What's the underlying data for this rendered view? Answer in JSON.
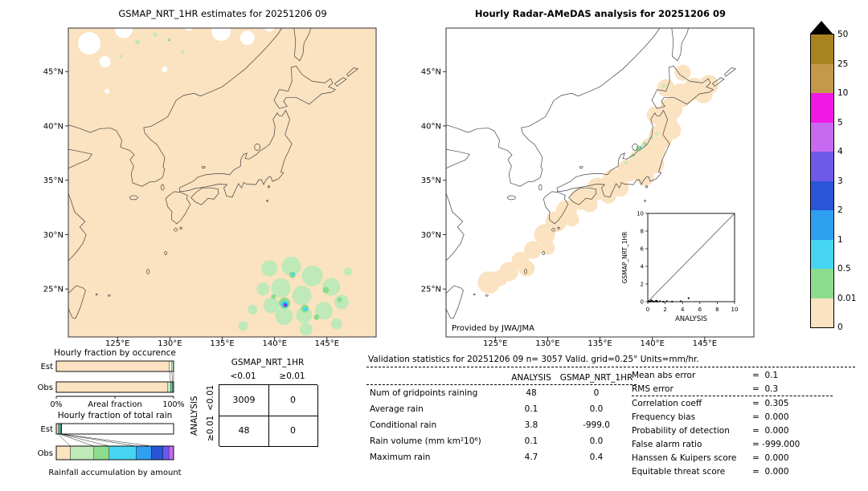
{
  "left_map": {
    "title": "GSMAP_NRT_1HR estimates for 20251206 09",
    "lat_ticks": [
      "45°N",
      "40°N",
      "35°N",
      "30°N",
      "25°N"
    ],
    "lon_ticks": [
      "125°E",
      "130°E",
      "135°E",
      "140°E",
      "145°E"
    ]
  },
  "right_map": {
    "title": "Hourly Radar-AMeDAS analysis for 20251206 09",
    "lat_ticks": [
      "45°N",
      "40°N",
      "35°N",
      "30°N",
      "25°N"
    ],
    "lon_ticks": [
      "125°E",
      "130°E",
      "135°E",
      "140°E",
      "145°E"
    ],
    "credit": "Provided by JWA/JMA",
    "inset": {
      "xlabel": "ANALYSIS",
      "ylabel": "GSMAP_NRT_1HR",
      "tick_labels": [
        "0",
        "2",
        "4",
        "6",
        "8",
        "10"
      ]
    }
  },
  "colorbar": {
    "units": "mm/hr",
    "tick_labels": [
      "50",
      "25",
      "10",
      "5",
      "4",
      "3",
      "2",
      "1",
      "0.5",
      "0.01",
      "0"
    ],
    "cell_colors_top_to_bottom": [
      "#a8831f",
      "#c49a4a",
      "#f11ae4",
      "#c86af0",
      "#6f5ae8",
      "#2a55d8",
      "#2f9ff0",
      "#45d5f2",
      "#8cdc8c",
      "#fbe2c0"
    ],
    "overflow_color": "#000000"
  },
  "occurrence_chart": {
    "title": "Hourly fraction by occurence",
    "row_labels": [
      "Est",
      "Obs"
    ],
    "axis_left": "0%",
    "axis_right": "100%",
    "caption": "Areal fraction",
    "est_segments": [
      {
        "color": "#fbe2c0",
        "pct": 96.5
      },
      {
        "color": "#ffffff",
        "pct": 2.0
      },
      {
        "color": "#bfe9b8",
        "pct": 1.5
      }
    ],
    "obs_segments": [
      {
        "color": "#fbe2c0",
        "pct": 95.0
      },
      {
        "color": "#bfe9b8",
        "pct": 2.5
      },
      {
        "color": "#8cdc8c",
        "pct": 1.5
      },
      {
        "color": "#45d5f2",
        "pct": 1.0
      }
    ]
  },
  "totalrain_chart": {
    "title": "Hourly fraction of total rain",
    "row_labels": [
      "Est",
      "Obs"
    ],
    "caption": "Rainfall accumulation by amount",
    "est_segments": [
      {
        "color": "#fbe2c0",
        "pct": 1.5
      },
      {
        "color": "#bfe9b8",
        "pct": 1.2
      },
      {
        "color": "#8cdc8c",
        "pct": 0.8
      },
      {
        "color": "#45d5f2",
        "pct": 0.7
      },
      {
        "color": "#2a55d8",
        "pct": 0.5
      },
      {
        "color": "#ffffff",
        "pct": 95.3
      }
    ],
    "obs_segments": [
      {
        "color": "#fbe2c0",
        "pct": 12
      },
      {
        "color": "#bfe9b8",
        "pct": 20
      },
      {
        "color": "#8cdc8c",
        "pct": 13
      },
      {
        "color": "#45d5f2",
        "pct": 23
      },
      {
        "color": "#2f9ff0",
        "pct": 13
      },
      {
        "color": "#2a55d8",
        "pct": 10
      },
      {
        "color": "#6f5ae8",
        "pct": 5
      },
      {
        "color": "#c86af0",
        "pct": 4
      }
    ]
  },
  "contingency": {
    "top_header": "GSMAP_NRT_1HR",
    "side_header": "ANALYSIS",
    "col_labels": [
      "<0.01",
      "≥0.01"
    ],
    "row_labels": [
      "<0.01",
      "≥0.01"
    ],
    "values": [
      [
        "3009",
        "0"
      ],
      [
        "48",
        "0"
      ]
    ]
  },
  "validation": {
    "title": "Validation statistics for 20251206 09  n= 3057 Valid. grid=0.25° Units=mm/hr.",
    "col_headers": [
      "ANALYSIS",
      "GSMAP_NRT_1HR"
    ],
    "rows": [
      {
        "label": "Num of gridpoints raining",
        "analysis": "48",
        "gsmap": "0"
      },
      {
        "label": "Average rain",
        "analysis": "0.1",
        "gsmap": "0.0"
      },
      {
        "label": "Conditional rain",
        "analysis": "3.8",
        "gsmap": "-999.0"
      },
      {
        "label": "Rain volume (mm km²10⁶)",
        "analysis": "0.1",
        "gsmap": "0.0"
      },
      {
        "label": "Maximum rain",
        "analysis": "4.7",
        "gsmap": "0.4"
      }
    ],
    "scores": [
      {
        "label": "Mean abs error",
        "value": "0.1"
      },
      {
        "label": "RMS error",
        "value": "0.3"
      },
      {
        "label": "Correlation coeff",
        "value": "0.305"
      },
      {
        "label": "Frequency bias",
        "value": "0.000"
      },
      {
        "label": "Probability of detection",
        "value": "0.000"
      },
      {
        "label": "False alarm ratio",
        "value": "-999.000"
      },
      {
        "label": "Hanssen & Kuipers score",
        "value": "0.000"
      },
      {
        "label": "Equitable threat score",
        "value": "0.000"
      }
    ]
  },
  "chart_data": [
    {
      "type": "heatmap",
      "title": "GSMAP_NRT_1HR estimates for 20251206 09",
      "units": "mm/hr",
      "x_axis": {
        "label": "longitude",
        "ticks": [
          "125°E",
          "130°E",
          "135°E",
          "140°E",
          "145°E"
        ],
        "range": [
          "~120.5°E",
          "~149.5°E"
        ]
      },
      "y_axis": {
        "label": "latitude",
        "ticks": [
          "45°N",
          "40°N",
          "35°N",
          "30°N",
          "25°N"
        ],
        "range": [
          "~20.5°N",
          "~49°N"
        ]
      },
      "levels_mm_hr": [
        0,
        0.01,
        0.5,
        1,
        2,
        3,
        4,
        5,
        10,
        25,
        50
      ],
      "summary": "Whole domain ~0 mm/hr (pale orange) with white no-data patches north of ~45°N; organized rain cluster near 21-27.5°N / 137-147°E with embedded cells up to 5-10 mm/hr (magenta core near 23.5°N, 141°E); scattered light rain specks near 46-48.5°N"
    },
    {
      "type": "heatmap",
      "title": "Hourly Radar-AMeDAS analysis for 20251206 09",
      "units": "mm/hr",
      "credit": "Provided by JWA/JMA",
      "x_axis": {
        "label": "longitude",
        "ticks": [
          "125°E",
          "130°E",
          "135°E",
          "140°E",
          "145°E"
        ]
      },
      "y_axis": {
        "label": "latitude",
        "ticks": [
          "45°N",
          "40°N",
          "35°N",
          "30°N",
          "25°N"
        ]
      },
      "levels_mm_hr": [
        0,
        0.01,
        0.5,
        1,
        2,
        3,
        4,
        5,
        10,
        25,
        50
      ],
      "summary": "Radar-AMeDAS coverage band along the Japanese archipelago mostly 0 mm/hr (pale orange); light rain 0.01-2 mm/hr on the Sea-of-Japan side of northern Honshu near 37-38.5°N / 138-139.5°E",
      "inset_scatter": {
        "xlabel": "ANALYSIS",
        "ylabel": "GSMAP_NRT_1HR",
        "xlim": [
          0,
          10
        ],
        "ylim": [
          0,
          10
        ],
        "diagonal_reference": true,
        "points_approx": [
          [
            0.1,
            0
          ],
          [
            0.3,
            0
          ],
          [
            0.5,
            0.1
          ],
          [
            0.9,
            0
          ],
          [
            1.4,
            0.05
          ],
          [
            1.9,
            0
          ],
          [
            2.8,
            0
          ],
          [
            3.8,
            0.05
          ],
          [
            4.7,
            0.4
          ]
        ]
      }
    },
    {
      "type": "bar",
      "title": "Hourly fraction by occurence",
      "xlabel": "Areal fraction",
      "orientation": "horizontal",
      "stacked": true,
      "unit": "%",
      "xlim": [
        0,
        100
      ],
      "categories": [
        "Est",
        "Obs"
      ],
      "series": [
        {
          "name": "Est",
          "segments_pct": {
            "0 mm/hr": 96.5,
            "missing": 2.0,
            "0.01-0.5": 1.5
          }
        },
        {
          "name": "Obs",
          "segments_pct": {
            "0 mm/hr": 95.0,
            "0.01-0.5": 2.5,
            "0.5-1": 1.5,
            "1-2": 1.0
          }
        }
      ]
    },
    {
      "type": "bar",
      "title": "Hourly fraction of total rain",
      "xlabel": "Rainfall accumulation by amount",
      "orientation": "horizontal",
      "stacked": true,
      "unit": "%",
      "xlim": [
        0,
        100
      ],
      "categories": [
        "Est",
        "Obs"
      ],
      "series": [
        {
          "name": "Est",
          "segments_pct": {
            "0-0.01": 1.5,
            "0.01-0.5": 1.2,
            "0.5-1": 0.8,
            "1-2": 0.7,
            "2-3": 0.5,
            "none": 95.3
          }
        },
        {
          "name": "Obs",
          "segments_pct": {
            "0-0.01": 12,
            "0.01-0.5": 20,
            "0.5-1": 13,
            "1-2": 23,
            "2-3": 13,
            "3-4": 10,
            "4-5": 5,
            "5-10": 4
          }
        }
      ]
    },
    {
      "type": "table",
      "title": "Contingency table (gridpoints)",
      "col_group": "GSMAP_NRT_1HR",
      "row_group": "ANALYSIS",
      "columns": [
        "<0.01",
        "≥0.01"
      ],
      "rows": [
        "<0.01",
        "≥0.01"
      ],
      "values": [
        [
          3009,
          0
        ],
        [
          48,
          0
        ]
      ]
    },
    {
      "type": "table",
      "title": "Validation statistics for 20251206 09",
      "n": 3057,
      "valid_grid": "0.25°",
      "units": "mm/hr",
      "columns": [
        "ANALYSIS",
        "GSMAP_NRT_1HR"
      ],
      "rows": [
        {
          "metric": "Num of gridpoints raining",
          "ANALYSIS": 48,
          "GSMAP_NRT_1HR": 0
        },
        {
          "metric": "Average rain",
          "ANALYSIS": 0.1,
          "GSMAP_NRT_1HR": 0.0
        },
        {
          "metric": "Conditional rain",
          "ANALYSIS": 3.8,
          "GSMAP_NRT_1HR": -999.0
        },
        {
          "metric": "Rain volume (mm km²10⁶)",
          "ANALYSIS": 0.1,
          "GSMAP_NRT_1HR": 0.0
        },
        {
          "metric": "Maximum rain",
          "ANALYSIS": 4.7,
          "GSMAP_NRT_1HR": 0.4
        }
      ],
      "scores": {
        "Mean abs error": 0.1,
        "RMS error": 0.3,
        "Correlation coeff": 0.305,
        "Frequency bias": 0.0,
        "Probability of detection": 0.0,
        "False alarm ratio": -999.0,
        "Hanssen & Kuipers score": 0.0,
        "Equitable threat score": 0.0
      }
    },
    {
      "type": "heatmap",
      "title": "shared colorbar legend",
      "legend_levels_bottom_to_top": [
        "0",
        "0.01",
        "0.5",
        "1",
        "2",
        "3",
        "4",
        "5",
        "10",
        "25",
        "50"
      ],
      "legend_colors_bottom_to_top": [
        "#fbe2c0",
        "#8cdc8c",
        "#45d5f2",
        "#2f9ff0",
        "#2a55d8",
        "#6f5ae8",
        "#c86af0",
        "#f11ae4",
        "#c49a4a",
        "#a8831f"
      ],
      "overflow": "black triangle above 50"
    }
  ]
}
